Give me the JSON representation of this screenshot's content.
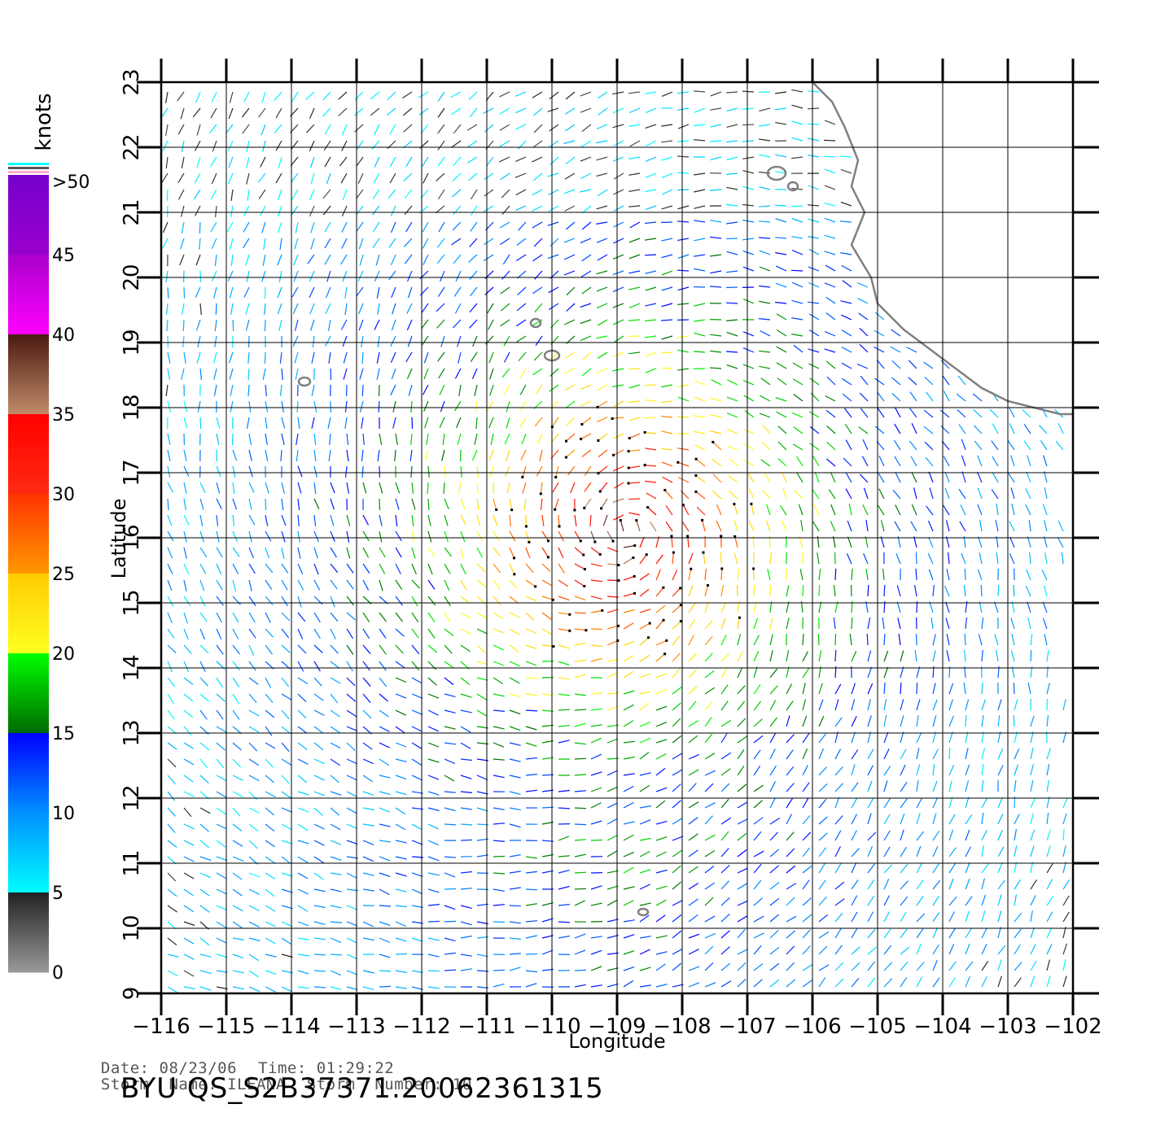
{
  "map": {
    "lon_range": [
      -116,
      -102
    ],
    "lat_range": [
      9,
      23
    ],
    "x_ticks": [
      "−116",
      "−115",
      "−114",
      "−113",
      "−112",
      "−111",
      "−110",
      "−109",
      "−108",
      "−107",
      "−106",
      "−105",
      "−104",
      "−103",
      "−102"
    ],
    "y_ticks": [
      "9",
      "10",
      "11",
      "12",
      "13",
      "14",
      "15",
      "16",
      "17",
      "18",
      "19",
      "20",
      "21",
      "22",
      "23"
    ],
    "xlabel": "Longitude",
    "ylabel": "Latitude",
    "grid": true,
    "coastline_color": "#808080",
    "storm_center": {
      "lon": -108.9,
      "lat": 16.1
    }
  },
  "colorbar": {
    "unit_label": "knots",
    "labels": [
      ">50",
      "45",
      "40",
      "35",
      "30",
      "25",
      "20",
      "15",
      "10",
      "5",
      "0"
    ],
    "bands": [
      {
        "from": 45,
        "to": 50,
        "top": "#7700cc",
        "bottom": "#9900cc"
      },
      {
        "from": 40,
        "to": 45,
        "top": "#aa00cc",
        "bottom": "#ff00ff"
      },
      {
        "from": 35,
        "to": 40,
        "top": "#4a1a10",
        "bottom": "#c28b6a"
      },
      {
        "from": 30,
        "to": 35,
        "top": "#ff0000",
        "bottom": "#ff2a10"
      },
      {
        "from": 25,
        "to": 30,
        "top": "#ff3300",
        "bottom": "#ff9900"
      },
      {
        "from": 20,
        "to": 25,
        "top": "#ffcc00",
        "bottom": "#ffff20"
      },
      {
        "from": 15,
        "to": 20,
        "top": "#00ff00",
        "bottom": "#006a00"
      },
      {
        "from": 10,
        "to": 15,
        "top": "#0000ff",
        "bottom": "#0090ff"
      },
      {
        "from": 5,
        "to": 10,
        "top": "#0090ff",
        "bottom": "#00ffff"
      },
      {
        "from": 0,
        "to": 5,
        "top": "#222222",
        "bottom": "#999999"
      }
    ],
    "top_stripes": [
      "#00ffff",
      "#555555",
      "#ffaacc"
    ]
  },
  "caption": {
    "date_label": "Date:",
    "date_value": "08/23/06",
    "time_label": "Time:",
    "time_value": "01:29:22",
    "storm_name_label": "Storm  Name:",
    "storm_name_value": "ILEANA",
    "storm_number_label": "Storm  Number:",
    "storm_number_value": "10"
  },
  "product_id": "BYU  QS_S2B37371.20062361315"
}
